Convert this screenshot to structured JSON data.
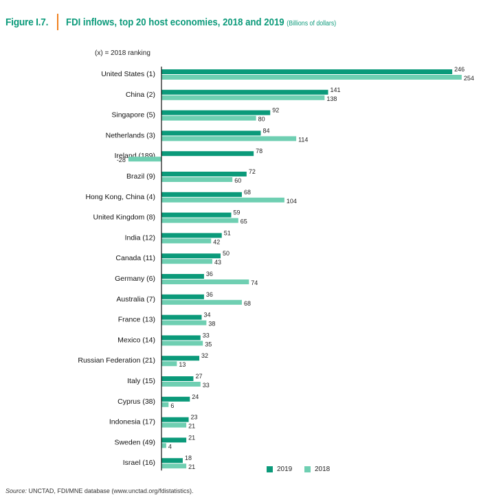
{
  "figure": {
    "label": "Figure I.7.",
    "title": "FDI inflows, top 20 host economies, 2018 and 2019",
    "units": "(Billions of dollars)",
    "ranking_note": "(x) = 2018 ranking",
    "source_label": "Source:",
    "source_text": "UNCTAD, FDI/MNE database (www.unctad.org/fdistatistics)."
  },
  "colors": {
    "y2019": "#0b9a7a",
    "y2018": "#6fcfb2",
    "title": "#0b9a7a",
    "accent": "#f07f1c"
  },
  "chart_data": {
    "type": "bar",
    "orientation": "horizontal",
    "title": "FDI inflows, top 20 host economies, 2018 and 2019",
    "xlabel": "Billions of dollars",
    "ylabel": "",
    "xlim": [
      -28,
      254
    ],
    "categories": [
      "United States (1)",
      "China (2)",
      "Singapore (5)",
      "Netherlands (3)",
      "Ireland (189)",
      "Brazil (9)",
      "Hong Kong, China (4)",
      "United Kingdom (8)",
      "India (12)",
      "Canada (11)",
      "Germany (6)",
      "Australia (7)",
      "France (13)",
      "Mexico (14)",
      "Russian Federation (21)",
      "Italy (15)",
      "Cyprus (38)",
      "Indonesia (17)",
      "Sweden (49)",
      "Israel (16)"
    ],
    "series": [
      {
        "name": "2019",
        "values": [
          246,
          141,
          92,
          84,
          78,
          72,
          68,
          59,
          51,
          50,
          36,
          36,
          34,
          33,
          32,
          27,
          24,
          23,
          21,
          18
        ]
      },
      {
        "name": "2018",
        "values": [
          254,
          138,
          80,
          114,
          -28,
          60,
          104,
          65,
          42,
          43,
          74,
          68,
          38,
          35,
          13,
          33,
          6,
          21,
          4,
          21
        ]
      }
    ],
    "legend": [
      "2019",
      "2018"
    ]
  }
}
